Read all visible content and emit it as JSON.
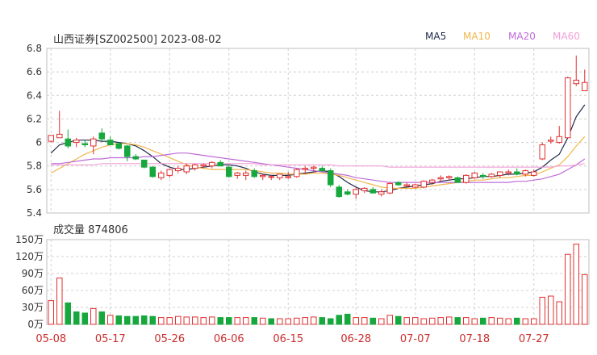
{
  "header": {
    "title": "山西证券[SZ002500] 2023-08-02",
    "volume_label": "成交量 874806"
  },
  "legend": [
    {
      "label": "MA5",
      "color": "#1f2a4a"
    },
    {
      "label": "MA10",
      "color": "#f2b64a"
    },
    {
      "label": "MA20",
      "color": "#bf6bd8"
    },
    {
      "label": "MA60",
      "color": "#f2a0d8"
    }
  ],
  "colors": {
    "up": "#e03030",
    "down": "#16a83c",
    "grid": "#d0d0d0"
  },
  "chart_data": [
    {
      "type": "candlestick",
      "title": "山西证券[SZ002500] 2023-08-02",
      "ylim": [
        5.4,
        6.8
      ],
      "y_ticks": [
        "5.4",
        "5.6",
        "5.8",
        "6",
        "6.2",
        "6.4",
        "6.6",
        "6.8"
      ],
      "x_tick_labels": [
        "05-08",
        "05-17",
        "05-26",
        "06-06",
        "06-15",
        "06-28",
        "07-07",
        "07-18",
        "07-27"
      ],
      "x_tick_index": [
        0,
        7,
        14,
        21,
        28,
        36,
        43,
        50,
        57
      ],
      "ohlc": [
        [
          6.01,
          6.06,
          6.0,
          6.06
        ],
        [
          6.04,
          6.27,
          6.04,
          6.07
        ],
        [
          6.03,
          6.11,
          5.95,
          5.97
        ],
        [
          6.0,
          6.04,
          5.96,
          6.02
        ],
        [
          5.99,
          6.02,
          5.96,
          5.98
        ],
        [
          5.97,
          6.05,
          5.9,
          6.03
        ],
        [
          6.08,
          6.12,
          6.01,
          6.03
        ],
        [
          6.02,
          6.05,
          5.98,
          5.98
        ],
        [
          5.99,
          6.0,
          5.94,
          5.95
        ],
        [
          5.97,
          5.98,
          5.84,
          5.88
        ],
        [
          5.88,
          5.9,
          5.85,
          5.86
        ],
        [
          5.85,
          5.85,
          5.78,
          5.79
        ],
        [
          5.79,
          5.8,
          5.7,
          5.71
        ],
        [
          5.7,
          5.76,
          5.68,
          5.74
        ],
        [
          5.72,
          5.78,
          5.7,
          5.77
        ],
        [
          5.76,
          5.8,
          5.74,
          5.78
        ],
        [
          5.75,
          5.82,
          5.73,
          5.8
        ],
        [
          5.78,
          5.82,
          5.76,
          5.81
        ],
        [
          5.8,
          5.82,
          5.78,
          5.81
        ],
        [
          5.8,
          5.84,
          5.78,
          5.83
        ],
        [
          5.83,
          5.85,
          5.81,
          5.8
        ],
        [
          5.79,
          5.8,
          5.7,
          5.71
        ],
        [
          5.72,
          5.75,
          5.69,
          5.74
        ],
        [
          5.72,
          5.76,
          5.68,
          5.74
        ],
        [
          5.76,
          5.78,
          5.7,
          5.71
        ],
        [
          5.71,
          5.73,
          5.68,
          5.72
        ],
        [
          5.71,
          5.72,
          5.68,
          5.71
        ],
        [
          5.7,
          5.73,
          5.68,
          5.73
        ],
        [
          5.7,
          5.75,
          5.69,
          5.71
        ],
        [
          5.71,
          5.78,
          5.7,
          5.77
        ],
        [
          5.77,
          5.8,
          5.73,
          5.78
        ],
        [
          5.78,
          5.8,
          5.76,
          5.79
        ],
        [
          5.78,
          5.8,
          5.75,
          5.76
        ],
        [
          5.76,
          5.78,
          5.62,
          5.64
        ],
        [
          5.62,
          5.64,
          5.53,
          5.54
        ],
        [
          5.58,
          5.6,
          5.55,
          5.56
        ],
        [
          5.56,
          5.62,
          5.52,
          5.6
        ],
        [
          5.59,
          5.62,
          5.57,
          5.61
        ],
        [
          5.6,
          5.62,
          5.58,
          5.57
        ],
        [
          5.56,
          5.6,
          5.54,
          5.58
        ],
        [
          5.57,
          5.66,
          5.56,
          5.65
        ],
        [
          5.66,
          5.67,
          5.63,
          5.64
        ],
        [
          5.63,
          5.66,
          5.62,
          5.64
        ],
        [
          5.62,
          5.65,
          5.61,
          5.64
        ],
        [
          5.62,
          5.68,
          5.61,
          5.67
        ],
        [
          5.66,
          5.69,
          5.64,
          5.68
        ],
        [
          5.69,
          5.72,
          5.67,
          5.7
        ],
        [
          5.7,
          5.72,
          5.68,
          5.71
        ],
        [
          5.7,
          5.71,
          5.66,
          5.66
        ],
        [
          5.66,
          5.73,
          5.65,
          5.72
        ],
        [
          5.7,
          5.75,
          5.69,
          5.74
        ],
        [
          5.72,
          5.74,
          5.69,
          5.71
        ],
        [
          5.71,
          5.74,
          5.7,
          5.73
        ],
        [
          5.72,
          5.75,
          5.7,
          5.75
        ],
        [
          5.74,
          5.77,
          5.72,
          5.75
        ],
        [
          5.75,
          5.78,
          5.72,
          5.73
        ],
        [
          5.73,
          5.77,
          5.71,
          5.76
        ],
        [
          5.72,
          5.77,
          5.71,
          5.75
        ],
        [
          5.86,
          6.0,
          5.85,
          5.98
        ],
        [
          6.01,
          6.05,
          5.99,
          6.02
        ],
        [
          6.0,
          6.14,
          5.99,
          6.05
        ],
        [
          6.04,
          6.56,
          6.04,
          6.55
        ],
        [
          6.5,
          6.74,
          6.48,
          6.53
        ],
        [
          6.44,
          6.62,
          6.44,
          6.51
        ]
      ],
      "series": [
        {
          "name": "MA5",
          "values": [
            5.91,
            5.98,
            6.0,
            6.02,
            6.02,
            6.02,
            6.01,
            6.01,
            6.0,
            5.99,
            5.97,
            5.93,
            5.88,
            5.82,
            5.79,
            5.77,
            5.77,
            5.78,
            5.79,
            5.8,
            5.81,
            5.81,
            5.8,
            5.78,
            5.75,
            5.73,
            5.72,
            5.72,
            5.72,
            5.73,
            5.74,
            5.75,
            5.76,
            5.75,
            5.71,
            5.66,
            5.62,
            5.59,
            5.58,
            5.58,
            5.59,
            5.61,
            5.62,
            5.63,
            5.64,
            5.65,
            5.67,
            5.68,
            5.69,
            5.69,
            5.7,
            5.71,
            5.71,
            5.72,
            5.73,
            5.73,
            5.74,
            5.75,
            5.79,
            5.85,
            5.9,
            6.04,
            6.22,
            6.32
          ]
        },
        {
          "name": "MA10",
          "values": [
            5.74,
            5.78,
            5.82,
            5.86,
            5.9,
            5.93,
            5.96,
            5.98,
            5.99,
            5.99,
            5.98,
            5.96,
            5.93,
            5.9,
            5.87,
            5.84,
            5.81,
            5.79,
            5.78,
            5.77,
            5.77,
            5.77,
            5.77,
            5.77,
            5.76,
            5.75,
            5.74,
            5.74,
            5.73,
            5.73,
            5.73,
            5.74,
            5.74,
            5.73,
            5.72,
            5.7,
            5.68,
            5.66,
            5.64,
            5.62,
            5.61,
            5.61,
            5.61,
            5.61,
            5.62,
            5.63,
            5.64,
            5.65,
            5.66,
            5.67,
            5.68,
            5.68,
            5.69,
            5.7,
            5.7,
            5.71,
            5.72,
            5.72,
            5.75,
            5.78,
            5.81,
            5.88,
            5.97,
            6.05
          ]
        },
        {
          "name": "MA20",
          "values": [
            5.82,
            5.82,
            5.83,
            5.84,
            5.85,
            5.86,
            5.86,
            5.87,
            5.87,
            5.87,
            5.87,
            5.88,
            5.88,
            5.89,
            5.9,
            5.91,
            5.91,
            5.9,
            5.89,
            5.88,
            5.87,
            5.86,
            5.85,
            5.84,
            5.83,
            5.82,
            5.81,
            5.8,
            5.79,
            5.78,
            5.77,
            5.76,
            5.75,
            5.74,
            5.73,
            5.72,
            5.7,
            5.69,
            5.68,
            5.67,
            5.66,
            5.66,
            5.66,
            5.66,
            5.66,
            5.66,
            5.66,
            5.66,
            5.66,
            5.66,
            5.66,
            5.66,
            5.66,
            5.66,
            5.66,
            5.67,
            5.67,
            5.68,
            5.69,
            5.71,
            5.73,
            5.77,
            5.81,
            5.86
          ]
        },
        {
          "name": "MA60",
          "values": [
            5.81,
            5.81,
            5.81,
            5.81,
            5.81,
            5.81,
            5.82,
            5.82,
            5.82,
            5.82,
            5.82,
            5.82,
            5.82,
            5.82,
            5.82,
            5.82,
            5.82,
            5.82,
            5.82,
            5.82,
            5.82,
            5.82,
            5.82,
            5.82,
            5.82,
            5.81,
            5.81,
            5.81,
            5.81,
            5.81,
            5.81,
            5.81,
            5.81,
            5.81,
            5.8,
            5.8,
            5.8,
            5.8,
            5.8,
            5.8,
            5.79,
            5.79,
            5.79,
            5.79,
            5.79,
            5.79,
            5.79,
            5.79,
            5.79,
            5.79,
            5.79,
            5.79,
            5.79,
            5.79,
            5.79,
            5.79,
            5.79,
            5.79,
            5.79,
            5.79,
            5.8,
            5.8,
            5.81,
            5.82
          ]
        }
      ]
    },
    {
      "type": "bar",
      "title": "成交量 874806",
      "ylim": [
        0,
        150
      ],
      "y_ticks": [
        "0万",
        "30万",
        "60万",
        "90万",
        "120万",
        "150万"
      ],
      "values": [
        42,
        82,
        38,
        22,
        20,
        28,
        22,
        16,
        15,
        14,
        14,
        15,
        14,
        12,
        12,
        14,
        13,
        13,
        12,
        13,
        12,
        12,
        12,
        12,
        12,
        11,
        10,
        10,
        10,
        11,
        12,
        13,
        12,
        10,
        16,
        18,
        12,
        12,
        11,
        10,
        16,
        14,
        12,
        12,
        10,
        11,
        12,
        13,
        12,
        12,
        10,
        11,
        12,
        11,
        10,
        11,
        10,
        10,
        48,
        50,
        40,
        124,
        142,
        88
      ],
      "up": [
        1,
        1,
        0,
        0,
        0,
        1,
        0,
        1,
        0,
        0,
        0,
        0,
        0,
        1,
        1,
        1,
        1,
        1,
        1,
        1,
        0,
        0,
        1,
        1,
        0,
        1,
        0,
        1,
        1,
        1,
        1,
        1,
        0,
        0,
        0,
        0,
        1,
        1,
        0,
        1,
        1,
        0,
        1,
        1,
        1,
        1,
        1,
        1,
        0,
        1,
        1,
        0,
        1,
        1,
        1,
        0,
        1,
        1,
        1,
        1,
        1,
        1,
        1,
        1
      ]
    }
  ]
}
